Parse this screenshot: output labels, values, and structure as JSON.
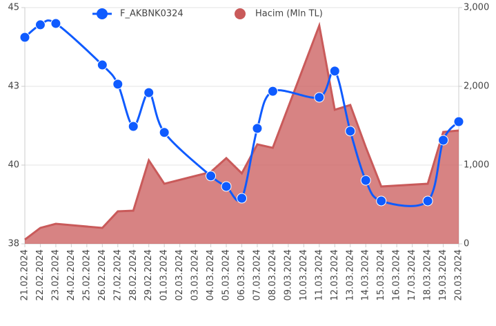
{
  "chart_data": {
    "type": "line",
    "categories": [
      "21.02.2024",
      "22.02.2024",
      "23.02.2024",
      "24.02.2024",
      "25.02.2024",
      "26.02.2024",
      "27.02.2024",
      "28.02.2024",
      "29.02.2024",
      "01.03.2024",
      "02.03.2024",
      "03.03.2024",
      "04.03.2024",
      "05.03.2024",
      "06.03.2024",
      "07.03.2024",
      "08.03.2024",
      "09.03.2024",
      "10.03.2024",
      "11.03.2024",
      "12.03.2024",
      "13.03.2024",
      "14.03.2024",
      "15.03.2024",
      "16.03.2024",
      "17.03.2024",
      "18.03.2024",
      "19.03.2024",
      "20.03.2024"
    ],
    "series": [
      {
        "name": "F_AKBNK0324",
        "type": "line",
        "color": "#0f5bff",
        "values": [
          44.12,
          44.49,
          44.53,
          null,
          null,
          43.3,
          42.73,
          41.48,
          42.48,
          41.3,
          null,
          null,
          40.01,
          39.7,
          39.35,
          41.42,
          42.52,
          null,
          null,
          42.34,
          43.12,
          41.34,
          39.88,
          39.27,
          null,
          null,
          39.27,
          41.07,
          41.62
        ]
      },
      {
        "name": "Hacim (Mln TL)",
        "type": "area",
        "axis": "y2",
        "color": "#c95a5a",
        "values": [
          53,
          202,
          254,
          null,
          null,
          202,
          412,
          421,
          1061,
          763,
          null,
          null,
          912,
          1088,
          895,
          1263,
          1219,
          null,
          null,
          2772,
          1702,
          1763,
          1228,
          728,
          null,
          null,
          763,
          1421,
          1439
        ]
      }
    ],
    "ylim": [
      38,
      45
    ],
    "yticks": [
      38,
      {
        "value": 40.333,
        "label": "40"
      },
      {
        "value": 42.667,
        "label": "43"
      },
      45
    ],
    "y2lim": [
      0,
      3000
    ],
    "y2ticks": [
      0,
      {
        "value": 1000,
        "label": "1,000"
      },
      {
        "value": 2000,
        "label": "2,000"
      },
      {
        "value": 3000,
        "label": "3,000"
      }
    ],
    "grid": true,
    "legend": "top",
    "span_gaps": true
  }
}
